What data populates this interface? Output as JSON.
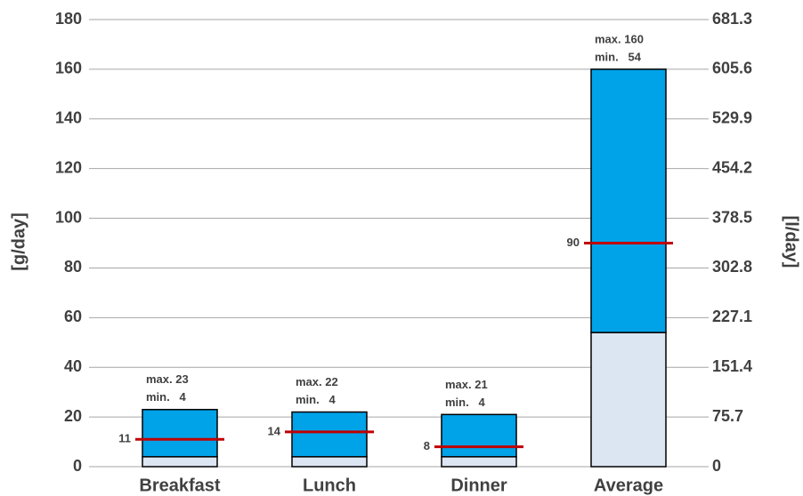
{
  "chart_data": {
    "type": "range_bar",
    "categories": [
      "Breakfast",
      "Lunch",
      "Dinner",
      "Average"
    ],
    "series": [
      {
        "color": "#dce6f2",
        "values": [
          4,
          4,
          4,
          54
        ],
        "value_labels": [
          "min.   4",
          "min.   4",
          "min.   4",
          "min.   54"
        ]
      },
      {
        "color": "#00a2e8",
        "values": [
          23,
          22,
          21,
          160
        ],
        "value_labels": [
          "max. 23",
          "max. 22",
          "max. 21",
          "max. 160"
        ]
      },
      {
        "color": "#c00000",
        "values": [
          11,
          14,
          8,
          90
        ]
      }
    ],
    "ylabel": "[g/day]",
    "y2label": "[l/day]",
    "ylim": [
      0,
      180
    ],
    "yticks": [
      0,
      20,
      40,
      60,
      80,
      100,
      120,
      140,
      160,
      180
    ],
    "y2lim": [
      0,
      681.3
    ],
    "y2ticks": [
      0,
      75.7,
      151.4,
      227.1,
      302.8,
      378.5,
      454.2,
      529.9,
      605.6,
      681.3
    ],
    "grid": true
  }
}
